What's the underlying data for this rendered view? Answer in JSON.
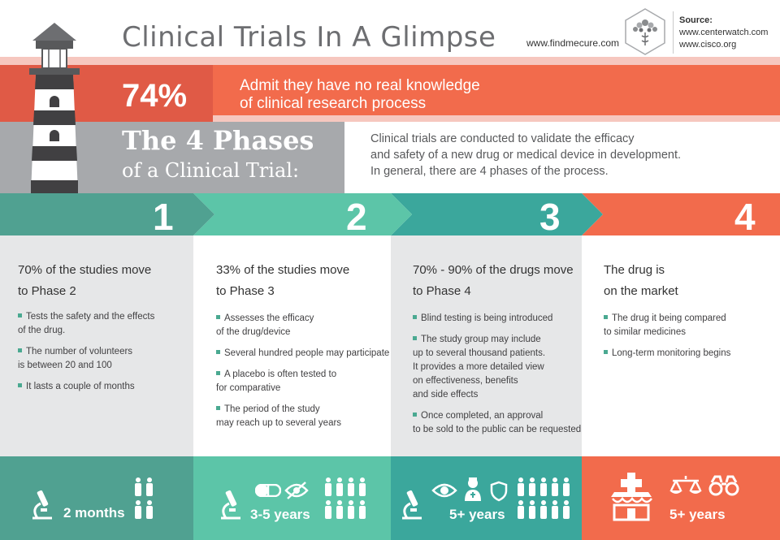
{
  "header": {
    "title": "Clinical Trials In A Glimpse",
    "website": "www.findmecure.com",
    "source_label": "Source:",
    "sources": [
      "www.centerwatch.com",
      "www.cisco.org"
    ]
  },
  "banner": {
    "stat_value": "74%",
    "stat_text_1": "Admit they have no real knowledge",
    "stat_text_2": "of clinical research process"
  },
  "phases_header": {
    "title_1": "The 4 Phases",
    "title_2": "of a Clinical Trial:",
    "intro_1": "Clinical trials are conducted to validate the efficacy",
    "intro_2": "and safety of a new drug or medical device in development.",
    "intro_3": "In general, there are 4 phases of the process."
  },
  "phases": [
    {
      "number": "1",
      "head_1": "70%  of the studies move",
      "head_2": "to Phase 2",
      "bullets": [
        [
          "Tests the safety and the effects",
          "of the drug."
        ],
        [
          "The number of volunteers",
          "is between 20 and 100"
        ],
        [
          "It lasts a couple of months"
        ]
      ],
      "duration": "2 months"
    },
    {
      "number": "2",
      "head_1": "33% of the studies move",
      "head_2": "to Phase 3",
      "bullets": [
        [
          "Assesses the efficacy",
          "of the drug/device"
        ],
        [
          "Several hundred people may participate"
        ],
        [
          "A placebo is often tested to",
          "for comparative"
        ],
        [
          "The period of the study",
          "may reach up to several years"
        ]
      ],
      "duration": "3-5 years"
    },
    {
      "number": "3",
      "head_1": "70% - 90% of the drugs move",
      "head_2": "to Phase 4",
      "bullets": [
        [
          "Blind testing is being introduced"
        ],
        [
          "The study group may include",
          "up to several thousand patients.",
          "It provides a more detailed view",
          "on effectiveness, benefits",
          "and side effects"
        ],
        [
          "Once completed, an approval",
          "to be sold to the public can be requested"
        ]
      ],
      "duration": "5+ years"
    },
    {
      "number": "4",
      "head_1": "The drug is",
      "head_2": "on the market",
      "bullets": [
        [
          "The drug it being compared",
          "to similar medicines"
        ],
        [
          "Long-term monitoring begins"
        ]
      ],
      "duration": "5+ years"
    }
  ],
  "icons": {
    "footer_1": [
      "microscope-icon",
      "people-icon"
    ],
    "footer_2": [
      "microscope-icon",
      "pill-icon",
      "blind-eye-icon",
      "people-icon"
    ],
    "footer_3": [
      "microscope-icon",
      "eye-icon",
      "doctor-icon",
      "shield-icon",
      "people-icon"
    ],
    "footer_4": [
      "pharmacy-store-icon",
      "balance-scale-icon",
      "binoculars-icon"
    ]
  },
  "colors": {
    "teal_dark": "#50a191",
    "teal_light": "#5cc5a8",
    "teal_mid": "#3ba79c",
    "orange": "#f26b4c",
    "red": "#e05a46",
    "gray": "#a7a9ac",
    "light_gray": "#e6e7e8"
  }
}
